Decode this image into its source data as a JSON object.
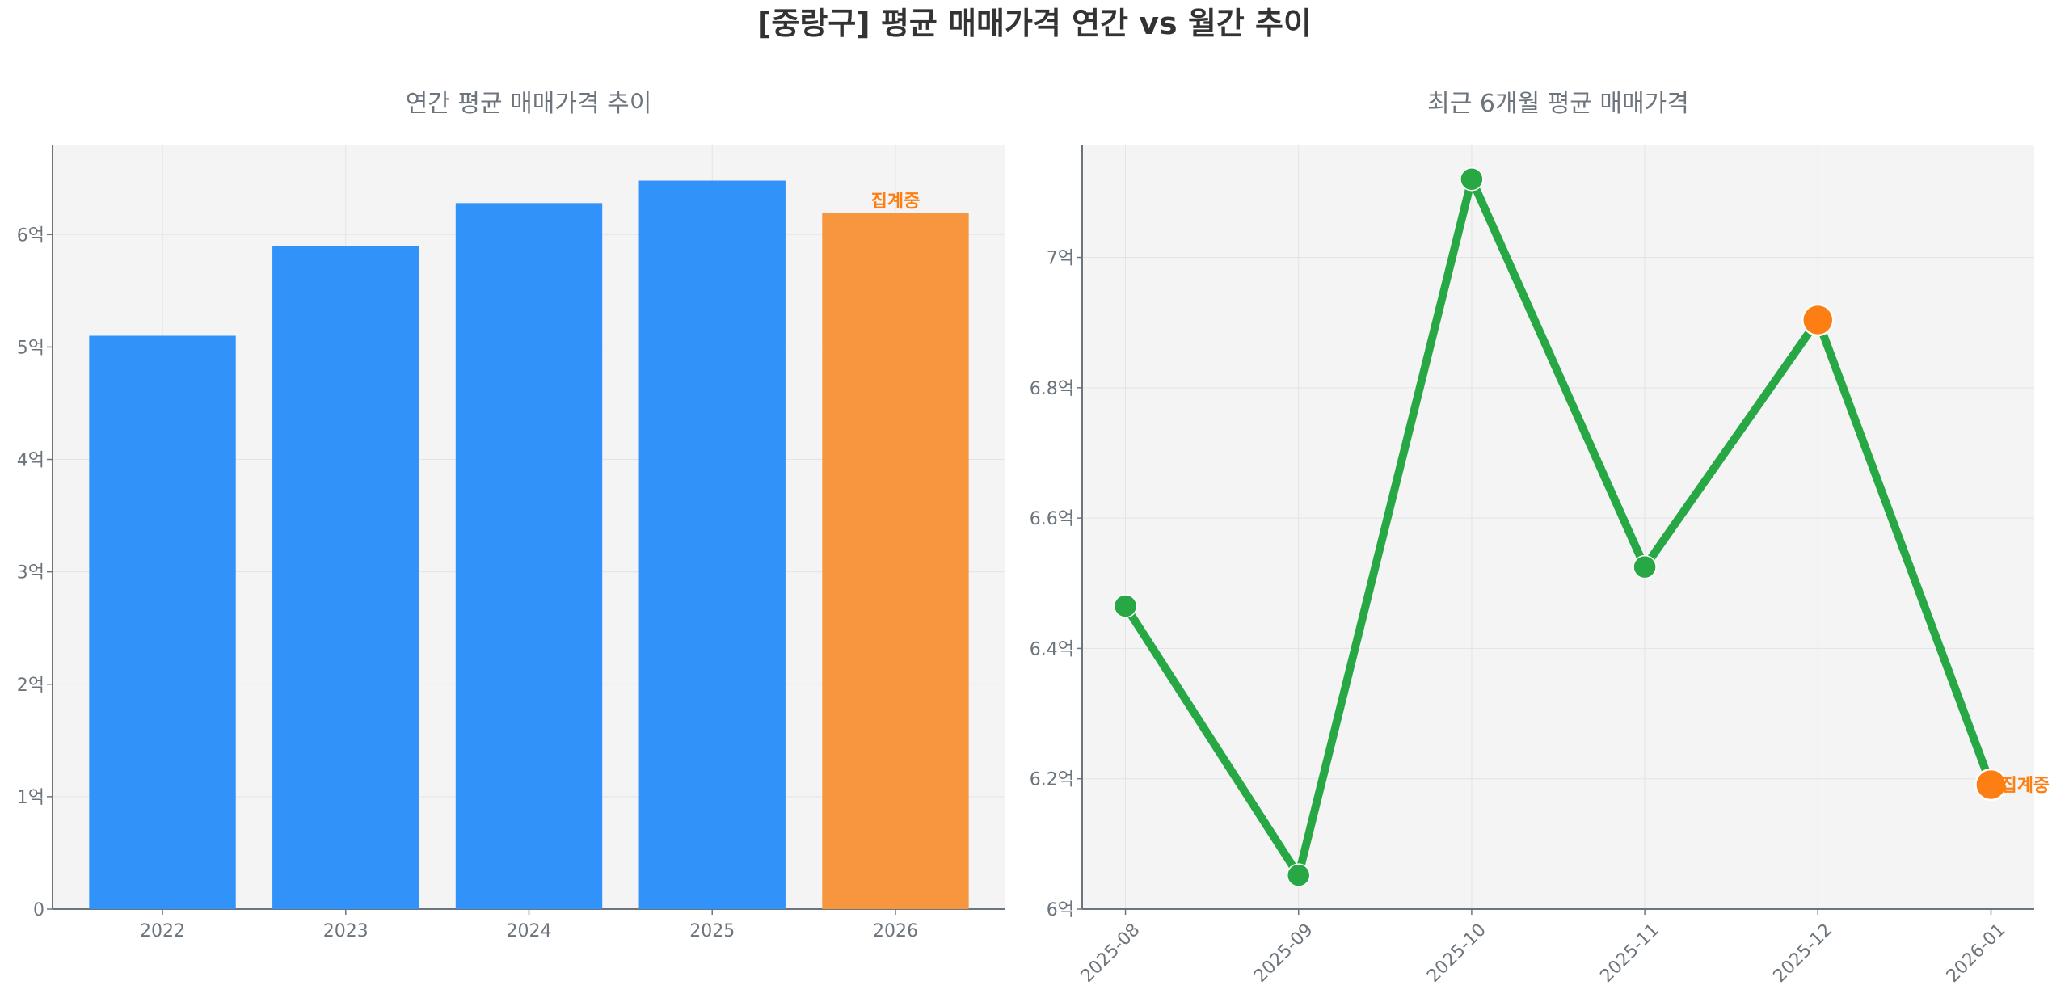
{
  "title": "[중랑구] 평균 매매가격 연간 vs 월간 추이",
  "colors": {
    "bar": "#3192fa",
    "bar_partial": "#f8963f",
    "line": "#28a745",
    "marker_highlight": "#fd7f14",
    "annotation": "#fd7f14"
  },
  "chart_data": [
    {
      "type": "bar",
      "title": "연간 평균 매매가격 추이",
      "categories": [
        "2022",
        "2023",
        "2024",
        "2025",
        "2026"
      ],
      "values": [
        5.1,
        5.9,
        6.28,
        6.48,
        6.19
      ],
      "unit_suffix": "억",
      "highlight_index": 4,
      "annotation": {
        "index": 4,
        "text": "집계중"
      },
      "ylim": [
        0,
        6.8
      ],
      "yticks": [
        0,
        1,
        2,
        3,
        4,
        5,
        6
      ],
      "ytick_labels": [
        "0",
        "1억",
        "2억",
        "3억",
        "4억",
        "5억",
        "6억"
      ],
      "grid": true
    },
    {
      "type": "line",
      "title": "최근 6개월 평균 매매가격",
      "categories": [
        "2025-08",
        "2025-09",
        "2025-10",
        "2025-11",
        "2025-12",
        "2026-01"
      ],
      "values": [
        6.465,
        6.052,
        7.12,
        6.525,
        6.904,
        6.191
      ],
      "unit_suffix": "억",
      "highlight_indices": [
        4,
        5
      ],
      "annotation": {
        "index": 5,
        "text": "집계중"
      },
      "ylim": [
        6.0,
        7.173
      ],
      "yticks": [
        6.0,
        6.2,
        6.4,
        6.6,
        6.8,
        7.0
      ],
      "ytick_labels": [
        "6억",
        "6.2억",
        "6.4억",
        "6.6억",
        "6.8억",
        "7억"
      ],
      "grid": true
    }
  ]
}
